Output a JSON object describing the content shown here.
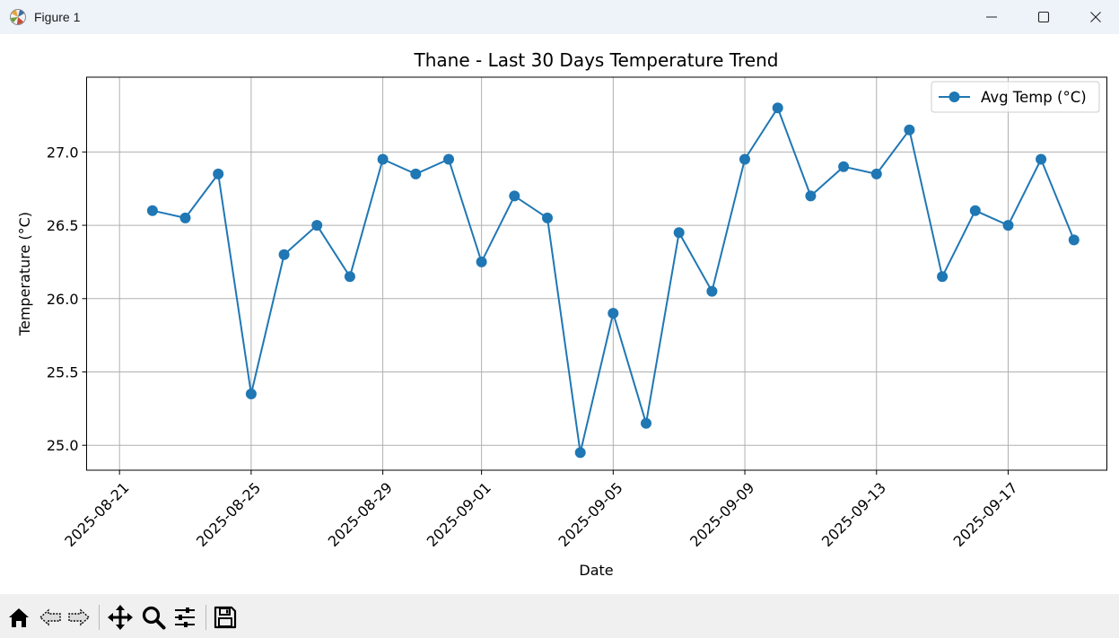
{
  "window": {
    "title": "Figure 1",
    "controls": [
      "minimize-icon",
      "maximize-icon",
      "close-icon"
    ]
  },
  "toolbar": {
    "buttons": [
      "home-icon",
      "back-icon",
      "forward-icon",
      "pan-icon",
      "zoom-icon",
      "configure-subplots-icon",
      "save-icon"
    ]
  },
  "colors": {
    "line": "#1f77b4",
    "grid": "#b0b0b0",
    "titlebar": "#eef2f9",
    "toolbar": "#f0f0f0"
  },
  "chart_data": {
    "type": "line",
    "title": "Thane - Last 30 Days Temperature Trend",
    "xlabel": "Date",
    "ylabel": "Temperature (°C)",
    "legend": {
      "entries": [
        "Avg Temp (°C)"
      ],
      "placement": "upper-right"
    },
    "grid": true,
    "x_ticks": [
      "2025-08-21",
      "2025-08-25",
      "2025-08-29",
      "2025-09-01",
      "2025-09-05",
      "2025-09-09",
      "2025-09-13",
      "2025-09-17"
    ],
    "y_ticks": [
      "25.0",
      "25.5",
      "26.0",
      "26.5",
      "27.0"
    ],
    "ylim": [
      24.83,
      27.51
    ],
    "xlim": [
      "2025-08-20",
      "2025-09-20"
    ],
    "series": [
      {
        "name": "Avg Temp (°C)",
        "x": [
          "2025-08-22",
          "2025-08-23",
          "2025-08-24",
          "2025-08-25",
          "2025-08-26",
          "2025-08-27",
          "2025-08-28",
          "2025-08-29",
          "2025-08-30",
          "2025-08-31",
          "2025-09-01",
          "2025-09-02",
          "2025-09-03",
          "2025-09-04",
          "2025-09-05",
          "2025-09-06",
          "2025-09-07",
          "2025-09-08",
          "2025-09-09",
          "2025-09-10",
          "2025-09-11",
          "2025-09-12",
          "2025-09-13",
          "2025-09-14",
          "2025-09-15",
          "2025-09-16",
          "2025-09-17",
          "2025-09-18",
          "2025-09-19"
        ],
        "values": [
          26.6,
          26.55,
          26.85,
          25.35,
          26.3,
          26.5,
          26.15,
          26.95,
          26.85,
          26.95,
          26.25,
          26.7,
          26.55,
          24.95,
          25.9,
          25.15,
          26.45,
          26.05,
          26.95,
          27.3,
          26.7,
          26.9,
          26.85,
          27.15,
          26.15,
          26.6,
          26.5,
          26.95,
          26.4
        ]
      }
    ]
  }
}
